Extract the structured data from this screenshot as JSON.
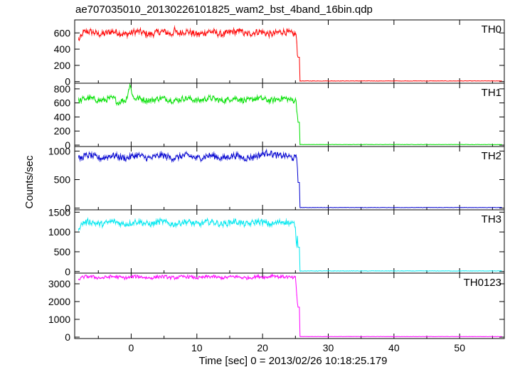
{
  "chart_data": {
    "type": "line",
    "title": "ae707035010_20130226101825_wam2_bst_4band_16bin.qdp",
    "xlabel": "Time [sec] 0 = 2013/02/26 10:18:25.179",
    "ylabel": "Counts/sec",
    "xlim": [
      -8.6,
      56.8
    ],
    "x_ticks": [
      0,
      10,
      20,
      30,
      40,
      50
    ],
    "grid": false,
    "drop_time": 25.4,
    "panels": [
      {
        "name": "TH0",
        "color": "#ff0000",
        "ylim": [
          -20,
          760
        ],
        "y_ticks": [
          0,
          200,
          400,
          600
        ],
        "series": {
          "start": 530,
          "base": 600,
          "noise": 40,
          "tail": 8,
          "features": [
            {
              "x": 6.6,
              "dy": 50,
              "w": 0.4
            },
            {
              "x": 16.7,
              "dy": 70,
              "w": 0.3
            },
            {
              "x": 25.3,
              "dy": -260,
              "w": 0.2
            }
          ]
        }
      },
      {
        "name": "TH1",
        "color": "#00e000",
        "ylim": [
          -20,
          880
        ],
        "y_ticks": [
          0,
          200,
          400,
          600,
          800
        ],
        "series": {
          "start": 640,
          "base": 650,
          "noise": 40,
          "tail": 8,
          "features": [
            {
              "x": -0.2,
              "dy": 210,
              "w": 0.6
            },
            {
              "x": -2.0,
              "dy": -60,
              "w": 0.6
            },
            {
              "x": 25.3,
              "dy": -220,
              "w": 0.2
            }
          ]
        }
      },
      {
        "name": "TH2",
        "color": "#0000d0",
        "ylim": [
          -30,
          1080
        ],
        "y_ticks": [
          0,
          500,
          1000
        ],
        "series": {
          "start": 880,
          "base": 900,
          "noise": 55,
          "tail": 10,
          "features": [
            {
              "x": 21.0,
              "dy": 100,
              "w": 1.5
            },
            {
              "x": 25.4,
              "dy": -340,
              "w": 0.2
            }
          ]
        }
      },
      {
        "name": "TH3",
        "color": "#00e8f0",
        "ylim": [
          -40,
          1560
        ],
        "y_ticks": [
          0,
          500,
          1000,
          1500
        ],
        "series": {
          "start": 1150,
          "base": 1230,
          "noise": 75,
          "tail": 15,
          "features": [
            {
              "x": 25.2,
              "dy": -520,
              "w": 0.3
            }
          ]
        }
      },
      {
        "name": "TH0123",
        "color": "#ff00ff",
        "ylim": [
          -80,
          3600
        ],
        "y_ticks": [
          0,
          1000,
          2000,
          3000
        ],
        "series": {
          "start": 3300,
          "base": 3370,
          "noise": 90,
          "tail": 30,
          "features": [
            {
              "x": 21.5,
              "dy": 150,
              "w": 1.0
            },
            {
              "x": 25.3,
              "dy": -1400,
              "w": 0.3
            }
          ]
        }
      }
    ]
  }
}
